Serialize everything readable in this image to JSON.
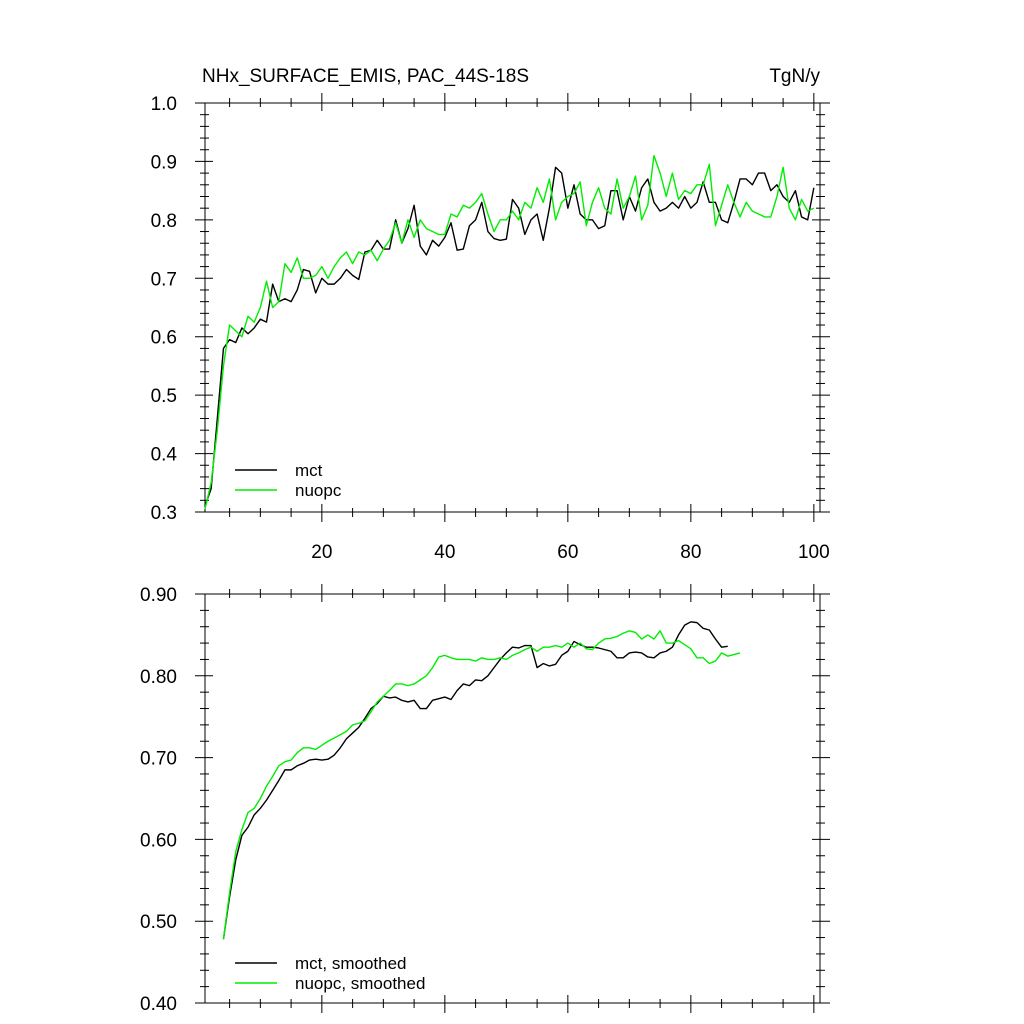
{
  "chart_data": [
    {
      "type": "line",
      "title_left": "NHx_SURFACE_EMIS, PAC_44S-18S",
      "title_right": "TgN/y",
      "xlabel": "",
      "ylabel": "",
      "xlim": [
        1,
        101
      ],
      "ylim": [
        0.3,
        1.0
      ],
      "x_ticks": [
        20,
        40,
        60,
        80,
        100
      ],
      "x_tick_labels": [
        "20",
        "40",
        "60",
        "80",
        "100"
      ],
      "y_ticks": [
        0.3,
        0.4,
        0.5,
        0.6,
        0.7,
        0.8,
        0.9,
        1.0
      ],
      "y_tick_labels": [
        "0.3",
        "0.4",
        "0.5",
        "0.6",
        "0.7",
        "0.8",
        "0.9",
        "1.0"
      ],
      "grid": false,
      "legend_position": "bottom-left",
      "series": [
        {
          "name": "mct",
          "color": "#000000",
          "x_start": 1,
          "values": [
            0.31,
            0.34,
            0.46,
            0.58,
            0.595,
            0.59,
            0.615,
            0.605,
            0.615,
            0.63,
            0.625,
            0.69,
            0.66,
            0.665,
            0.66,
            0.68,
            0.715,
            0.712,
            0.675,
            0.7,
            0.69,
            0.69,
            0.7,
            0.715,
            0.705,
            0.698,
            0.745,
            0.748,
            0.765,
            0.75,
            0.75,
            0.8,
            0.76,
            0.785,
            0.825,
            0.755,
            0.74,
            0.765,
            0.755,
            0.77,
            0.795,
            0.748,
            0.75,
            0.79,
            0.8,
            0.83,
            0.78,
            0.768,
            0.765,
            0.767,
            0.835,
            0.82,
            0.775,
            0.8,
            0.81,
            0.765,
            0.82,
            0.89,
            0.88,
            0.82,
            0.86,
            0.81,
            0.8,
            0.8,
            0.785,
            0.79,
            0.85,
            0.85,
            0.8,
            0.84,
            0.815,
            0.855,
            0.87,
            0.83,
            0.815,
            0.82,
            0.83,
            0.82,
            0.84,
            0.82,
            0.83,
            0.865,
            0.83,
            0.83,
            0.8,
            0.795,
            0.83,
            0.87,
            0.87,
            0.86,
            0.88,
            0.88,
            0.85,
            0.86,
            0.84,
            0.83,
            0.85,
            0.805,
            0.8,
            0.855
          ]
        },
        {
          "name": "nuopc",
          "color": "#00ee00",
          "x_start": 1,
          "values": [
            0.305,
            0.35,
            0.44,
            0.55,
            0.62,
            0.61,
            0.6,
            0.635,
            0.625,
            0.65,
            0.695,
            0.65,
            0.66,
            0.725,
            0.71,
            0.735,
            0.7,
            0.7,
            0.705,
            0.72,
            0.7,
            0.72,
            0.735,
            0.745,
            0.725,
            0.745,
            0.74,
            0.748,
            0.73,
            0.75,
            0.765,
            0.795,
            0.76,
            0.8,
            0.77,
            0.8,
            0.785,
            0.78,
            0.775,
            0.775,
            0.81,
            0.805,
            0.825,
            0.82,
            0.83,
            0.845,
            0.81,
            0.78,
            0.8,
            0.8,
            0.815,
            0.8,
            0.83,
            0.82,
            0.855,
            0.83,
            0.87,
            0.8,
            0.83,
            0.84,
            0.845,
            0.865,
            0.79,
            0.83,
            0.855,
            0.82,
            0.81,
            0.87,
            0.82,
            0.84,
            0.875,
            0.8,
            0.825,
            0.91,
            0.88,
            0.84,
            0.88,
            0.835,
            0.85,
            0.845,
            0.86,
            0.86,
            0.895,
            0.79,
            0.825,
            0.86,
            0.83,
            0.805,
            0.83,
            0.815,
            0.81,
            0.805,
            0.805,
            0.84,
            0.89,
            0.82,
            0.8,
            0.835,
            0.815,
            0.82
          ]
        }
      ]
    },
    {
      "type": "line",
      "title_left": "",
      "title_right": "",
      "xlabel": "",
      "ylabel": "",
      "xlim": [
        1,
        101
      ],
      "ylim": [
        0.4,
        0.9
      ],
      "x_ticks": [
        20,
        40,
        60,
        80,
        100
      ],
      "x_tick_labels": [],
      "y_ticks": [
        0.4,
        0.5,
        0.6,
        0.7,
        0.8,
        0.9
      ],
      "y_tick_labels": [
        "0.40",
        "0.50",
        "0.60",
        "0.70",
        "0.80",
        "0.90"
      ],
      "grid": false,
      "legend_position": "bottom-left",
      "series": [
        {
          "name": "mct, smoothed",
          "color": "#000000",
          "x_start": 4,
          "values": [
            0.478,
            0.53,
            0.575,
            0.605,
            0.615,
            0.63,
            0.638,
            0.648,
            0.66,
            0.672,
            0.685,
            0.685,
            0.69,
            0.693,
            0.697,
            0.698,
            0.697,
            0.698,
            0.703,
            0.712,
            0.723,
            0.73,
            0.737,
            0.748,
            0.76,
            0.766,
            0.775,
            0.773,
            0.774,
            0.77,
            0.768,
            0.77,
            0.76,
            0.76,
            0.77,
            0.772,
            0.774,
            0.771,
            0.782,
            0.79,
            0.788,
            0.795,
            0.794,
            0.8,
            0.81,
            0.82,
            0.828,
            0.835,
            0.834,
            0.837,
            0.837,
            0.81,
            0.815,
            0.812,
            0.814,
            0.825,
            0.83,
            0.842,
            0.838,
            0.835,
            0.835,
            0.834,
            0.832,
            0.83,
            0.822,
            0.822,
            0.828,
            0.829,
            0.828,
            0.823,
            0.822,
            0.828,
            0.83,
            0.835,
            0.85,
            0.862,
            0.866,
            0.865,
            0.858,
            0.856,
            0.845,
            0.835,
            0.836
          ]
        },
        {
          "name": "nuopc, smoothed",
          "color": "#00ee00",
          "x_start": 4,
          "values": [
            0.478,
            0.535,
            0.585,
            0.612,
            0.633,
            0.638,
            0.65,
            0.665,
            0.677,
            0.69,
            0.695,
            0.697,
            0.706,
            0.712,
            0.712,
            0.71,
            0.715,
            0.72,
            0.724,
            0.728,
            0.732,
            0.74,
            0.742,
            0.745,
            0.756,
            0.768,
            0.775,
            0.782,
            0.79,
            0.79,
            0.788,
            0.79,
            0.795,
            0.8,
            0.81,
            0.823,
            0.825,
            0.822,
            0.82,
            0.82,
            0.82,
            0.818,
            0.822,
            0.82,
            0.82,
            0.822,
            0.82,
            0.825,
            0.828,
            0.832,
            0.835,
            0.83,
            0.835,
            0.835,
            0.837,
            0.835,
            0.84,
            0.835,
            0.84,
            0.833,
            0.832,
            0.84,
            0.845,
            0.846,
            0.848,
            0.852,
            0.855,
            0.853,
            0.845,
            0.85,
            0.845,
            0.855,
            0.84,
            0.84,
            0.843,
            0.838,
            0.833,
            0.822,
            0.822,
            0.815,
            0.818,
            0.828,
            0.824,
            0.826,
            0.828
          ]
        }
      ]
    }
  ]
}
